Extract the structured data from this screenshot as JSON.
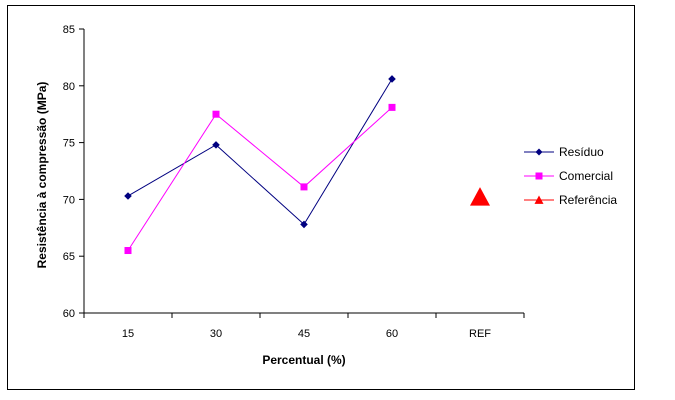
{
  "chart_data": {
    "type": "line",
    "title": "",
    "xlabel": "Percentual (%)",
    "ylabel": "Resistência à compressão (MPa)",
    "categories": [
      "15",
      "30",
      "45",
      "60",
      "REF"
    ],
    "ylim": [
      60,
      85
    ],
    "yticks": [
      60,
      65,
      70,
      75,
      80,
      85
    ],
    "grid": false,
    "legend_position": "right",
    "series": [
      {
        "name": "Resíduo",
        "marker": "diamond",
        "color": "#000080",
        "values": [
          70.3,
          74.8,
          67.8,
          80.6,
          null
        ]
      },
      {
        "name": "Comercial",
        "marker": "square",
        "color": "#FF00FF",
        "values": [
          65.5,
          77.5,
          71.1,
          78.1,
          null
        ]
      },
      {
        "name": "Referência",
        "marker": "triangle",
        "color": "#FF0000",
        "values": [
          null,
          null,
          null,
          null,
          70.2
        ]
      }
    ]
  }
}
